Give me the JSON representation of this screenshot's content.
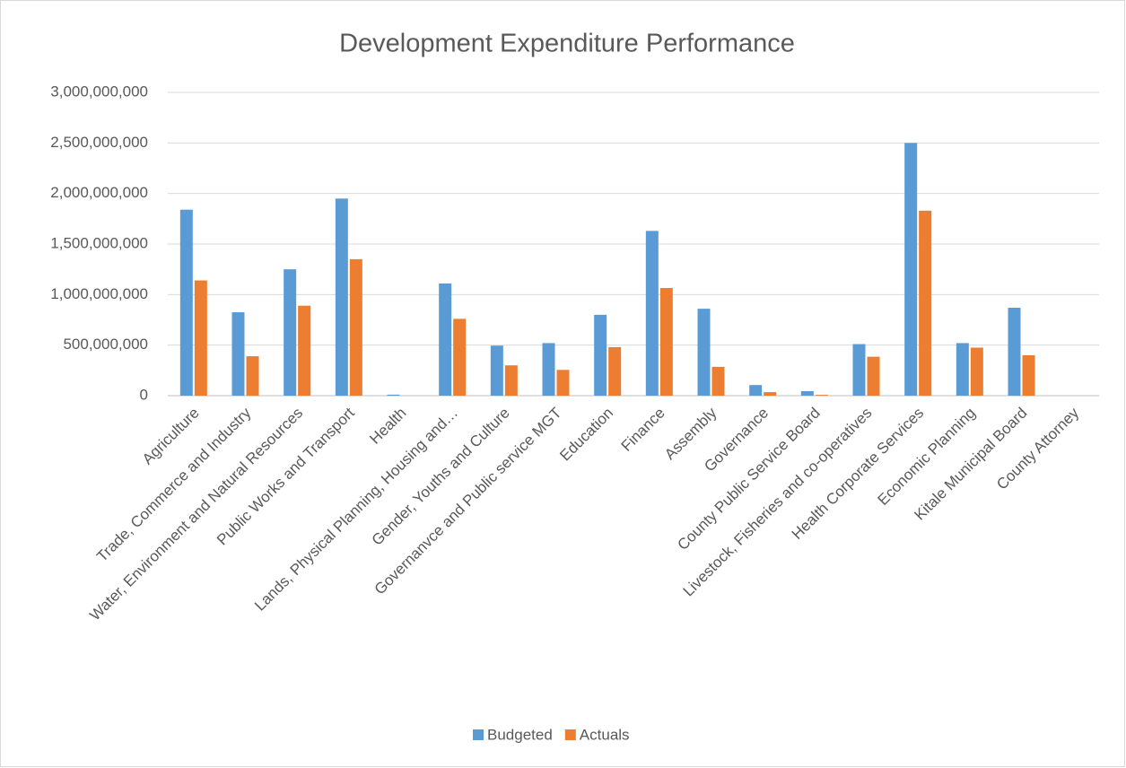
{
  "chart_data": {
    "type": "bar",
    "title": "Development Expenditure Performance",
    "categories": [
      "Agriculture",
      "Trade, Commerce and Industry",
      "Water, Environment and Natural Resources",
      "Public Works and Transport",
      "Health",
      "Lands, Physical Planning, Housing and…",
      "Gender, Youths and Culture",
      "Governanvce and Public service MGT",
      "Education",
      "Finance",
      "Assembly",
      "Governance",
      "County Public Service Board",
      "Livestock, Fisheries and co-operatives",
      "Health Corporate Services",
      "Economic Planning",
      "Kitale Municipal Board",
      "County Attorney"
    ],
    "series": [
      {
        "name": "Budgeted",
        "color": "#5b9bd5",
        "values": [
          1840000000,
          825000000,
          1250000000,
          1950000000,
          10000000,
          1110000000,
          495000000,
          520000000,
          800000000,
          1630000000,
          860000000,
          105000000,
          45000000,
          510000000,
          2500000000,
          520000000,
          870000000,
          0
        ]
      },
      {
        "name": "Actuals",
        "color": "#ed7d31",
        "values": [
          1140000000,
          390000000,
          890000000,
          1350000000,
          0,
          760000000,
          300000000,
          255000000,
          480000000,
          1065000000,
          285000000,
          35000000,
          8000000,
          385000000,
          1830000000,
          475000000,
          400000000,
          0
        ]
      }
    ],
    "ylim": [
      0,
      3000000000
    ],
    "yticks": [
      0,
      {
        "value": 500000000,
        "label": "500,000,000"
      },
      {
        "value": 1000000000,
        "label": "1,000,000,000"
      },
      {
        "value": 1500000000,
        "label": "1,500,000,000"
      },
      {
        "value": 2000000000,
        "label": "2,000,000,000"
      },
      {
        "value": 2500000000,
        "label": "2,500,000,000"
      },
      {
        "value": 3000000000,
        "label": "3,000,000,000"
      }
    ],
    "grid": true,
    "legend": "bottom"
  }
}
